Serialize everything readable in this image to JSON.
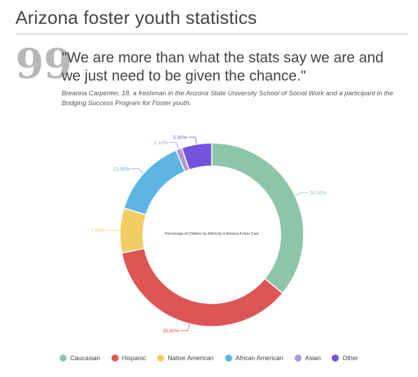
{
  "header": {
    "title": "Arizona foster youth statistics"
  },
  "quote": {
    "mark": "99",
    "text": "\"We are more than what the stats say we are and we just need to be given the chance.\"",
    "attribution": "Breanna Carpenter, 18, a freshman in the Arizona State University School of Social Work and a participant in the Bridging Success Program for Foster youth."
  },
  "chart_data": {
    "type": "pie",
    "title": "Percentage of Children by Ethnicity in Arizona Foster Care",
    "donut": true,
    "legend_position": "bottom",
    "categories": [
      "Caucasian",
      "Hispanic",
      "Native American",
      "African American",
      "Asian",
      "Other"
    ],
    "values": [
      36.0,
      35.8,
      7.9,
      13.9,
      1.1,
      5.3
    ],
    "value_labels": [
      "36.00%",
      "35.80%",
      "7.90%",
      "13.90%",
      "1.10%",
      "5.30%"
    ],
    "colors": [
      "#8dc5a8",
      "#de5555",
      "#f1cd64",
      "#5db5e3",
      "#b59ad0",
      "#7453dc"
    ]
  }
}
